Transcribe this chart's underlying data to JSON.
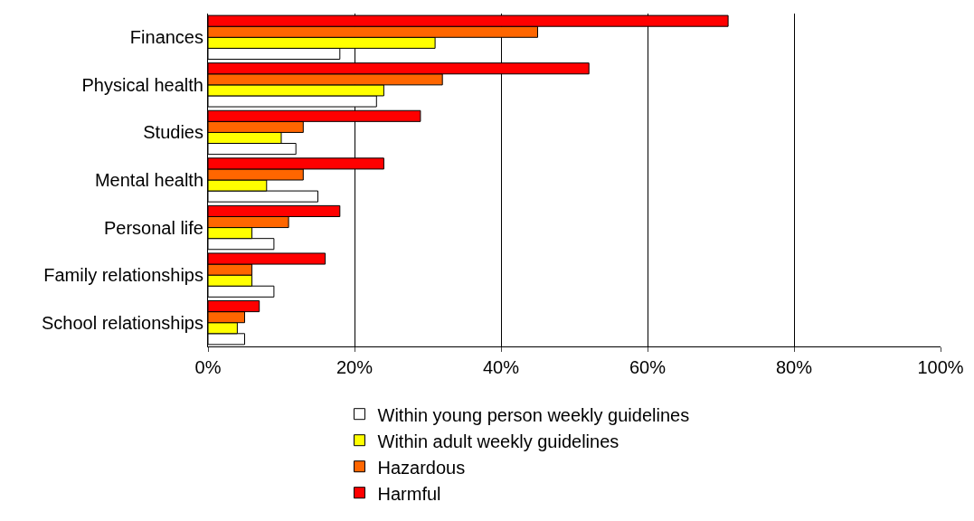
{
  "chart_data": {
    "type": "bar",
    "orientation": "horizontal",
    "categories": [
      "Finances",
      "Physical health",
      "Studies",
      "Mental health",
      "Personal life",
      "Family relationships",
      "School relationships"
    ],
    "series": [
      {
        "name": "Within young person weekly guidelines",
        "color": "#ffffff",
        "values": [
          18,
          23,
          12,
          15,
          9,
          9,
          5
        ]
      },
      {
        "name": "Within adult weekly guidelines",
        "color": "#ffff00",
        "values": [
          31,
          24,
          10,
          8,
          6,
          6,
          4
        ]
      },
      {
        "name": "Hazardous",
        "color": "#ff6600",
        "values": [
          45,
          32,
          13,
          13,
          11,
          6,
          5
        ]
      },
      {
        "name": "Harmful",
        "color": "#ff0000",
        "values": [
          71,
          52,
          29,
          24,
          18,
          16,
          7
        ]
      }
    ],
    "xlim": [
      0,
      100
    ],
    "xticks": [
      {
        "value": 0,
        "label": "0%"
      },
      {
        "value": 20,
        "label": "20%"
      },
      {
        "value": 40,
        "label": "40%"
      },
      {
        "value": 60,
        "label": "60%"
      },
      {
        "value": 80,
        "label": "80%"
      },
      {
        "value": 100,
        "label": "100%"
      }
    ],
    "grid": "x",
    "legend": "bottom"
  }
}
